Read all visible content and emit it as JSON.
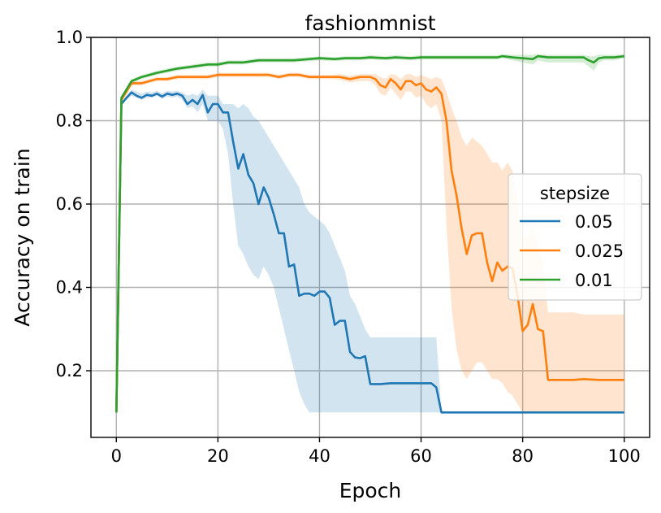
{
  "chart_data": {
    "type": "line",
    "title": "fashionmnist",
    "xlabel": "Epoch",
    "ylabel": "Accuracy on train",
    "xlim": [
      -5,
      105
    ],
    "ylim": [
      0.04,
      1.0
    ],
    "xticks": [
      0,
      20,
      40,
      60,
      80,
      100
    ],
    "yticks": [
      0.2,
      0.4,
      0.6,
      0.8,
      1.0
    ],
    "xtick_labels": [
      "0",
      "20",
      "40",
      "60",
      "80",
      "100"
    ],
    "ytick_labels": [
      "0.2",
      "0.4",
      "0.6",
      "0.8",
      "1.0"
    ],
    "grid": true,
    "legend": {
      "title": "stepsize",
      "placement": "center-right"
    },
    "series": [
      {
        "name": "0.05",
        "color": "#1f77b4",
        "x": [
          0,
          1,
          2,
          3,
          4,
          5,
          6,
          7,
          8,
          9,
          10,
          11,
          12,
          13,
          14,
          15,
          16,
          17,
          18,
          19,
          20,
          21,
          22,
          23,
          24,
          25,
          26,
          27,
          28,
          29,
          30,
          31,
          32,
          33,
          34,
          35,
          36,
          37,
          38,
          39,
          40,
          41,
          42,
          43,
          44,
          45,
          46,
          47,
          48,
          49,
          50,
          52,
          54,
          56,
          58,
          60,
          62,
          63,
          64,
          65,
          70,
          80,
          90,
          100
        ],
        "values": [
          0.1,
          0.84,
          0.855,
          0.868,
          0.86,
          0.855,
          0.862,
          0.86,
          0.865,
          0.858,
          0.865,
          0.862,
          0.865,
          0.86,
          0.84,
          0.85,
          0.84,
          0.862,
          0.82,
          0.84,
          0.84,
          0.82,
          0.82,
          0.75,
          0.685,
          0.72,
          0.67,
          0.65,
          0.6,
          0.64,
          0.615,
          0.575,
          0.53,
          0.53,
          0.45,
          0.455,
          0.38,
          0.385,
          0.385,
          0.38,
          0.39,
          0.39,
          0.375,
          0.31,
          0.32,
          0.32,
          0.245,
          0.232,
          0.23,
          0.235,
          0.168,
          0.168,
          0.17,
          0.17,
          0.17,
          0.17,
          0.17,
          0.16,
          0.1,
          0.1,
          0.1,
          0.1,
          0.1,
          0.1
        ],
        "band_lower": [
          0.1,
          0.84,
          0.85,
          0.86,
          0.855,
          0.85,
          0.855,
          0.855,
          0.86,
          0.852,
          0.858,
          0.855,
          0.858,
          0.85,
          0.83,
          0.835,
          0.82,
          0.84,
          0.8,
          0.8,
          0.8,
          0.78,
          0.72,
          0.6,
          0.5,
          0.48,
          0.45,
          0.43,
          0.42,
          0.45,
          0.43,
          0.4,
          0.35,
          0.3,
          0.25,
          0.2,
          0.15,
          0.12,
          0.1,
          0.1,
          0.1,
          0.1,
          0.1,
          0.1,
          0.1,
          0.1,
          0.1,
          0.1,
          0.1,
          0.1,
          0.1,
          0.1,
          0.1,
          0.1,
          0.1,
          0.1,
          0.1,
          0.1,
          0.1,
          0.1,
          0.1,
          0.1,
          0.1,
          0.1
        ],
        "band_upper": [
          0.1,
          0.845,
          0.86,
          0.875,
          0.87,
          0.865,
          0.87,
          0.868,
          0.872,
          0.866,
          0.872,
          0.87,
          0.872,
          0.868,
          0.86,
          0.865,
          0.86,
          0.875,
          0.86,
          0.86,
          0.86,
          0.84,
          0.84,
          0.84,
          0.83,
          0.84,
          0.83,
          0.81,
          0.8,
          0.78,
          0.76,
          0.74,
          0.72,
          0.7,
          0.68,
          0.66,
          0.64,
          0.6,
          0.58,
          0.57,
          0.56,
          0.55,
          0.53,
          0.5,
          0.47,
          0.44,
          0.38,
          0.36,
          0.33,
          0.3,
          0.28,
          0.28,
          0.28,
          0.28,
          0.28,
          0.28,
          0.28,
          0.28,
          0.1,
          0.1,
          0.1,
          0.1,
          0.1,
          0.1
        ]
      },
      {
        "name": "0.025",
        "color": "#ff7f0e",
        "x": [
          0,
          1,
          2,
          3,
          5,
          8,
          10,
          12,
          14,
          16,
          18,
          20,
          22,
          24,
          26,
          28,
          30,
          32,
          34,
          36,
          38,
          40,
          42,
          44,
          46,
          48,
          50,
          51,
          52,
          53,
          54,
          55,
          56,
          57,
          58,
          59,
          60,
          61,
          62,
          63,
          64,
          65,
          66,
          67,
          68,
          69,
          70,
          71,
          72,
          73,
          74,
          75,
          76,
          77,
          78,
          79,
          80,
          81,
          82,
          83,
          84,
          85,
          88,
          90,
          92,
          95,
          98,
          100
        ],
        "values": [
          0.1,
          0.85,
          0.87,
          0.89,
          0.89,
          0.9,
          0.9,
          0.905,
          0.905,
          0.905,
          0.905,
          0.91,
          0.91,
          0.91,
          0.91,
          0.91,
          0.91,
          0.905,
          0.91,
          0.91,
          0.905,
          0.905,
          0.905,
          0.905,
          0.9,
          0.905,
          0.905,
          0.9,
          0.885,
          0.88,
          0.9,
          0.89,
          0.875,
          0.895,
          0.895,
          0.885,
          0.89,
          0.875,
          0.87,
          0.88,
          0.865,
          0.8,
          0.68,
          0.62,
          0.54,
          0.48,
          0.525,
          0.53,
          0.53,
          0.46,
          0.415,
          0.46,
          0.44,
          0.45,
          0.445,
          0.38,
          0.295,
          0.31,
          0.36,
          0.3,
          0.295,
          0.178,
          0.178,
          0.178,
          0.18,
          0.178,
          0.178,
          0.178
        ],
        "band_lower": [
          0.1,
          0.85,
          0.865,
          0.885,
          0.885,
          0.895,
          0.895,
          0.9,
          0.9,
          0.9,
          0.9,
          0.905,
          0.905,
          0.905,
          0.905,
          0.905,
          0.905,
          0.9,
          0.905,
          0.905,
          0.9,
          0.9,
          0.9,
          0.898,
          0.892,
          0.895,
          0.895,
          0.885,
          0.865,
          0.86,
          0.88,
          0.865,
          0.85,
          0.87,
          0.87,
          0.855,
          0.86,
          0.84,
          0.83,
          0.84,
          0.8,
          0.55,
          0.35,
          0.25,
          0.2,
          0.18,
          0.2,
          0.22,
          0.22,
          0.2,
          0.18,
          0.18,
          0.17,
          0.15,
          0.14,
          0.12,
          0.1,
          0.1,
          0.1,
          0.1,
          0.1,
          0.1,
          0.1,
          0.1,
          0.1,
          0.1,
          0.1,
          0.1
        ],
        "band_upper": [
          0.1,
          0.855,
          0.875,
          0.895,
          0.895,
          0.905,
          0.905,
          0.91,
          0.91,
          0.91,
          0.91,
          0.915,
          0.915,
          0.915,
          0.915,
          0.915,
          0.915,
          0.91,
          0.915,
          0.915,
          0.91,
          0.91,
          0.91,
          0.912,
          0.908,
          0.912,
          0.912,
          0.912,
          0.905,
          0.9,
          0.912,
          0.91,
          0.9,
          0.912,
          0.912,
          0.905,
          0.91,
          0.905,
          0.9,
          0.905,
          0.9,
          0.87,
          0.83,
          0.8,
          0.76,
          0.74,
          0.76,
          0.75,
          0.74,
          0.72,
          0.7,
          0.7,
          0.68,
          0.7,
          0.68,
          0.6,
          0.52,
          0.52,
          0.55,
          0.5,
          0.45,
          0.34,
          0.34,
          0.34,
          0.335,
          0.335,
          0.335,
          0.335
        ]
      },
      {
        "name": "0.01",
        "color": "#2ca02c",
        "x": [
          0,
          1,
          2,
          3,
          5,
          8,
          10,
          12,
          15,
          18,
          20,
          22,
          25,
          28,
          30,
          33,
          35,
          38,
          40,
          43,
          45,
          48,
          50,
          53,
          55,
          58,
          60,
          63,
          65,
          68,
          70,
          73,
          75,
          76,
          78,
          80,
          82,
          83,
          85,
          88,
          90,
          92,
          93,
          94,
          95,
          96,
          98,
          100
        ],
        "values": [
          0.1,
          0.855,
          0.875,
          0.895,
          0.905,
          0.915,
          0.92,
          0.925,
          0.93,
          0.935,
          0.935,
          0.94,
          0.94,
          0.945,
          0.945,
          0.945,
          0.945,
          0.948,
          0.95,
          0.948,
          0.95,
          0.95,
          0.952,
          0.95,
          0.952,
          0.95,
          0.952,
          0.952,
          0.952,
          0.952,
          0.952,
          0.952,
          0.952,
          0.955,
          0.952,
          0.95,
          0.948,
          0.955,
          0.952,
          0.952,
          0.952,
          0.952,
          0.945,
          0.94,
          0.95,
          0.952,
          0.952,
          0.955
        ],
        "band_lower": [
          0.1,
          0.85,
          0.87,
          0.89,
          0.9,
          0.91,
          0.915,
          0.92,
          0.925,
          0.93,
          0.93,
          0.935,
          0.935,
          0.94,
          0.94,
          0.94,
          0.94,
          0.943,
          0.945,
          0.943,
          0.945,
          0.945,
          0.947,
          0.945,
          0.947,
          0.945,
          0.947,
          0.947,
          0.947,
          0.947,
          0.947,
          0.947,
          0.947,
          0.95,
          0.945,
          0.94,
          0.935,
          0.945,
          0.94,
          0.94,
          0.94,
          0.94,
          0.93,
          0.92,
          0.94,
          0.945,
          0.945,
          0.95
        ],
        "band_upper": [
          0.1,
          0.86,
          0.88,
          0.9,
          0.91,
          0.92,
          0.925,
          0.93,
          0.935,
          0.94,
          0.94,
          0.945,
          0.945,
          0.95,
          0.95,
          0.95,
          0.95,
          0.953,
          0.955,
          0.953,
          0.955,
          0.955,
          0.957,
          0.955,
          0.957,
          0.955,
          0.957,
          0.957,
          0.957,
          0.957,
          0.957,
          0.957,
          0.957,
          0.96,
          0.958,
          0.958,
          0.958,
          0.96,
          0.958,
          0.958,
          0.958,
          0.958,
          0.955,
          0.955,
          0.958,
          0.958,
          0.958,
          0.96
        ]
      }
    ]
  }
}
